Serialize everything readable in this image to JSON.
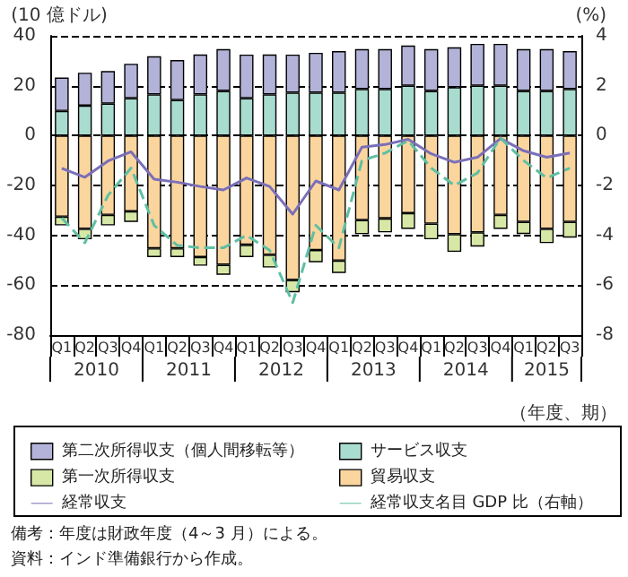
{
  "chart_data": {
    "type": "bar",
    "stacked": true,
    "ylabel": "(10 億ドル)",
    "y2label": "(%)",
    "xlabel": "（年度、期）",
    "categories": [
      "Q1",
      "Q2",
      "Q3",
      "Q4",
      "Q1",
      "Q2",
      "Q3",
      "Q4",
      "Q1",
      "Q2",
      "Q3",
      "Q4",
      "Q1",
      "Q2",
      "Q3",
      "Q4",
      "Q1",
      "Q2",
      "Q3",
      "Q4",
      "Q1",
      "Q2",
      "Q3"
    ],
    "ylim": [
      -80,
      40
    ],
    "yticks": [
      -80,
      -60,
      -40,
      -20,
      0,
      20,
      40
    ],
    "y2lim": [
      -8,
      4
    ],
    "y2ticks": [
      -8,
      -6,
      -4,
      -2,
      0,
      2,
      4
    ],
    "grid": "y",
    "legend": "bottom",
    "marker": "none",
    "series": [
      {
        "name": "サービス収支",
        "color": "#a8dccf",
        "values": [
          9.9,
          12,
          12.8,
          15,
          16.5,
          14.3,
          16.5,
          17.9,
          15,
          16.5,
          17.2,
          17.2,
          17.2,
          18.7,
          18.7,
          20,
          17.9,
          19.4,
          20,
          20,
          17.9,
          17.9,
          18.7
        ]
      },
      {
        "name": "第二次所得収支（個人間移転等）",
        "color": "#b3b3d9",
        "values": [
          13.4,
          13.2,
          13.1,
          13.8,
          15.3,
          16,
          16,
          16.8,
          17.5,
          16,
          15.3,
          16,
          16.7,
          16,
          16,
          16.1,
          16.8,
          16,
          16.8,
          16.8,
          16.8,
          16.8,
          15.2
        ]
      },
      {
        "name": "貿易収支",
        "color": "#fbd59e",
        "values": [
          -32.5,
          -37.4,
          -31.8,
          -30.4,
          -45.2,
          -45.2,
          -48.7,
          -51.8,
          -43.8,
          -47.8,
          -57.9,
          -45.9,
          -50.1,
          -33.9,
          -33.2,
          -31.1,
          -35.3,
          -39.5,
          -38.8,
          -31.8,
          -34.6,
          -37.4,
          -34.6
        ]
      },
      {
        "name": "第一次所得収支",
        "color": "#d7e8a6",
        "values": [
          -3.5,
          -4.2,
          -4.2,
          -4.2,
          -3.5,
          -3.5,
          -3.5,
          -4,
          -4.9,
          -5.1,
          -4.9,
          -4.9,
          -5,
          -5.6,
          -5.6,
          -6.3,
          -6.3,
          -7.1,
          -5.7,
          -5.6,
          -4.9,
          -5.7,
          -6.3
        ]
      },
      {
        "name": "経常収支",
        "type": "line",
        "color": "#7a6fb8",
        "line_style": "solid",
        "values": [
          -13.1,
          -16.7,
          -10.2,
          -6.5,
          -17.5,
          -18.7,
          -20.4,
          -21.8,
          -17,
          -20.4,
          -31.5,
          -18.2,
          -21.8,
          -4.6,
          -3.6,
          -1.5,
          -7.3,
          -10.7,
          -8.7,
          -1.2,
          -6.1,
          -8.7,
          -7
        ]
      },
      {
        "name": "経常収支名目 GDP 比（右軸）",
        "type": "line",
        "axis": "y2",
        "color": "#5fbfa3",
        "line_style": "dashed",
        "values": [
          -3.3,
          -4.3,
          -2.4,
          -1.3,
          -3.6,
          -4.4,
          -4.5,
          -4.5,
          -4,
          -4.6,
          -6.7,
          -3.6,
          -4.5,
          -1,
          -0.7,
          -0.2,
          -1.3,
          -2,
          -1.5,
          -0.1,
          -1,
          -1.7,
          -1.3
        ]
      }
    ],
    "annotations": [
      "2010",
      "2011",
      "2012",
      "2013",
      "2014",
      "2015",
      "備考：年度は財政年度（4～3 月）による。",
      "資料：インド準備銀行から作成。"
    ]
  }
}
